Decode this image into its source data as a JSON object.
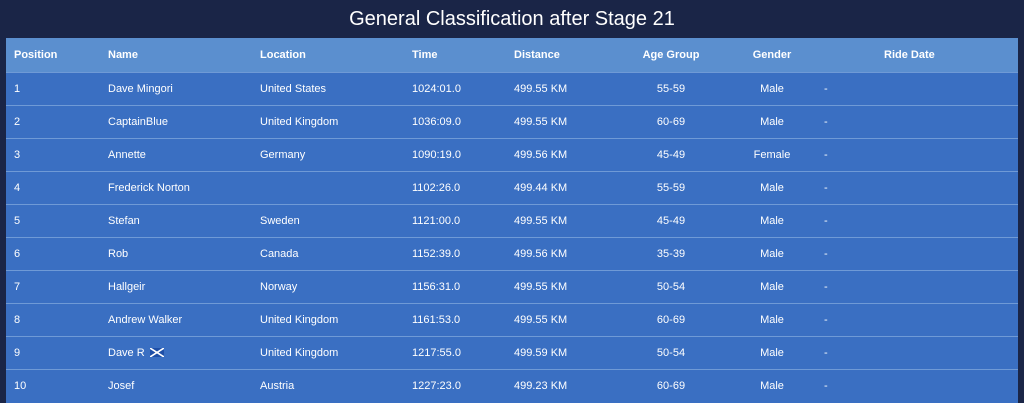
{
  "page": {
    "title": "General Classification after Stage 21"
  },
  "table": {
    "headers": {
      "position": "Position",
      "name": "Name",
      "location": "Location",
      "time": "Time",
      "distance": "Distance",
      "age_group": "Age Group",
      "gender": "Gender",
      "ride_date": "Ride Date"
    },
    "rows": [
      {
        "position": "1",
        "name": "Dave Mingori",
        "location": "United States",
        "time": "1024:01.0",
        "distance": "499.55 KM",
        "age_group": "55-59",
        "gender": "Male",
        "ride_date": "-"
      },
      {
        "position": "2",
        "name": "CaptainBlue",
        "location": "United Kingdom",
        "time": "1036:09.0",
        "distance": "499.55 KM",
        "age_group": "60-69",
        "gender": "Male",
        "ride_date": "-"
      },
      {
        "position": "3",
        "name": "Annette",
        "location": "Germany",
        "time": "1090:19.0",
        "distance": "499.56 KM",
        "age_group": "45-49",
        "gender": "Female",
        "ride_date": "-"
      },
      {
        "position": "4",
        "name": "Frederick Norton",
        "location": "",
        "time": "1102:26.0",
        "distance": "499.44 KM",
        "age_group": "55-59",
        "gender": "Male",
        "ride_date": "-"
      },
      {
        "position": "5",
        "name": "Stefan",
        "location": "Sweden",
        "time": "1121:00.0",
        "distance": "499.55 KM",
        "age_group": "45-49",
        "gender": "Male",
        "ride_date": "-"
      },
      {
        "position": "6",
        "name": "Rob",
        "location": "Canada",
        "time": "1152:39.0",
        "distance": "499.56 KM",
        "age_group": "35-39",
        "gender": "Male",
        "ride_date": "-"
      },
      {
        "position": "7",
        "name": "Hallgeir",
        "location": "Norway",
        "time": "1156:31.0",
        "distance": "499.55 KM",
        "age_group": "50-54",
        "gender": "Male",
        "ride_date": "-"
      },
      {
        "position": "8",
        "name": "Andrew Walker",
        "location": "United Kingdom",
        "time": "1161:53.0",
        "distance": "499.55 KM",
        "age_group": "60-69",
        "gender": "Male",
        "ride_date": "-"
      },
      {
        "position": "9",
        "name": "Dave R",
        "name_flag_icon": "scotland-flag-icon",
        "location": "United Kingdom",
        "time": "1217:55.0",
        "distance": "499.59 KM",
        "age_group": "50-54",
        "gender": "Male",
        "ride_date": "-"
      },
      {
        "position": "10",
        "name": "Josef",
        "location": "Austria",
        "time": "1227:23.0",
        "distance": "499.23 KM",
        "age_group": "60-69",
        "gender": "Male",
        "ride_date": "-"
      }
    ]
  },
  "colors": {
    "page_background": "#1a2547",
    "header_row": "#5b8fcf",
    "body_row": "#3a6fc2",
    "row_divider": "#6f9ad6",
    "flag_blue": "#1e4fa8",
    "flag_white": "#ffffff"
  }
}
